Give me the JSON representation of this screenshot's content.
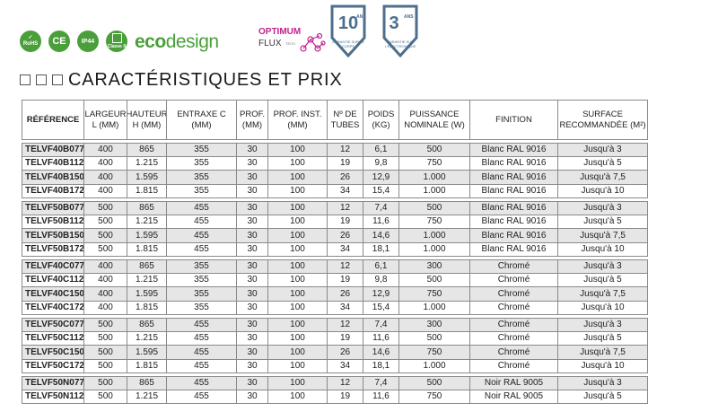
{
  "logos": {
    "rohs": "RoHS",
    "ce": "CE",
    "ip": "IP44",
    "class": "Classe II",
    "eco_prefix": "eco",
    "eco_suffix": "design",
    "optimum_line1": "OPTIMUM",
    "optimum_line2": "FLUX",
    "optimum_tech": "TECH",
    "warranty1_num": "10",
    "warranty1_unit": "ANS",
    "warranty1_text": "GARANTIE SUR LE CORPS",
    "warranty2_num": "3",
    "warranty2_unit": "ANS",
    "warranty2_text": "GARANTIE SUR L'ÉLECTRONIQUE",
    "green": "#4a9f3a",
    "pink": "#c0238f",
    "steel": "#4d6e8c"
  },
  "title": "CARACTÉRISTIQUES ET PRIX",
  "table": {
    "headers": [
      "RÉFÉRENCE",
      "LARGEUR L (MM)",
      "HAUTEUR H (MM)",
      "ENTRAXE C (MM)",
      "PROF. (MM)",
      "PROF. INST. (MM)",
      "Nº DE TUBES",
      "POIDS (KG)",
      "PUISSANCE NOMINALE (W)",
      "FINITION",
      "SURFACE RECOMMANDÉE (M²)"
    ],
    "groups": [
      [
        [
          "TELVF40B077",
          "400",
          "865",
          "355",
          "30",
          "100",
          "12",
          "6,1",
          "500",
          "Blanc RAL 9016",
          "Jusqu'à 3"
        ],
        [
          "TELVF40B112",
          "400",
          "1.215",
          "355",
          "30",
          "100",
          "19",
          "9,8",
          "750",
          "Blanc RAL 9016",
          "Jusqu'à 5"
        ],
        [
          "TELVF40B150",
          "400",
          "1.595",
          "355",
          "30",
          "100",
          "26",
          "12,9",
          "1.000",
          "Blanc RAL 9016",
          "Jusqu'à 7,5"
        ],
        [
          "TELVF40B172",
          "400",
          "1.815",
          "355",
          "30",
          "100",
          "34",
          "15,4",
          "1.000",
          "Blanc RAL 9016",
          "Jusqu'à 10"
        ]
      ],
      [
        [
          "TELVF50B077",
          "500",
          "865",
          "455",
          "30",
          "100",
          "12",
          "7,4",
          "500",
          "Blanc RAL 9016",
          "Jusqu'à 3"
        ],
        [
          "TELVF50B112",
          "500",
          "1.215",
          "455",
          "30",
          "100",
          "19",
          "11,6",
          "750",
          "Blanc RAL 9016",
          "Jusqu'à 5"
        ],
        [
          "TELVF50B150",
          "500",
          "1.595",
          "455",
          "30",
          "100",
          "26",
          "14,6",
          "1.000",
          "Blanc RAL 9016",
          "Jusqu'à 7,5"
        ],
        [
          "TELVF50B172",
          "500",
          "1.815",
          "455",
          "30",
          "100",
          "34",
          "18,1",
          "1.000",
          "Blanc RAL 9016",
          "Jusqu'à 10"
        ]
      ],
      [
        [
          "TELVF40C077",
          "400",
          "865",
          "355",
          "30",
          "100",
          "12",
          "6,1",
          "300",
          "Chromé",
          "Jusqu'à 3"
        ],
        [
          "TELVF40C112",
          "400",
          "1.215",
          "355",
          "30",
          "100",
          "19",
          "9,8",
          "500",
          "Chromé",
          "Jusqu'à 5"
        ],
        [
          "TELVF40C150",
          "400",
          "1.595",
          "355",
          "30",
          "100",
          "26",
          "12,9",
          "750",
          "Chromé",
          "Jusqu'à 7,5"
        ],
        [
          "TELVF40C172",
          "400",
          "1.815",
          "355",
          "30",
          "100",
          "34",
          "15,4",
          "1.000",
          "Chromé",
          "Jusqu'à 10"
        ]
      ],
      [
        [
          "TELVF50C077",
          "500",
          "865",
          "455",
          "30",
          "100",
          "12",
          "7,4",
          "300",
          "Chromé",
          "Jusqu'à 3"
        ],
        [
          "TELVF50C112",
          "500",
          "1.215",
          "455",
          "30",
          "100",
          "19",
          "11,6",
          "500",
          "Chromé",
          "Jusqu'à 5"
        ],
        [
          "TELVF50C150",
          "500",
          "1.595",
          "455",
          "30",
          "100",
          "26",
          "14,6",
          "750",
          "Chromé",
          "Jusqu'à 7,5"
        ],
        [
          "TELVF50C172",
          "500",
          "1.815",
          "455",
          "30",
          "100",
          "34",
          "18,1",
          "1.000",
          "Chromé",
          "Jusqu'à 10"
        ]
      ],
      [
        [
          "TELVF50N077",
          "500",
          "865",
          "455",
          "30",
          "100",
          "12",
          "7,4",
          "500",
          "Noir RAL 9005",
          "Jusqu'à 3"
        ],
        [
          "TELVF50N112",
          "500",
          "1.215",
          "455",
          "30",
          "100",
          "19",
          "11,6",
          "750",
          "Noir RAL 9005",
          "Jusqu'à 5"
        ]
      ]
    ]
  }
}
